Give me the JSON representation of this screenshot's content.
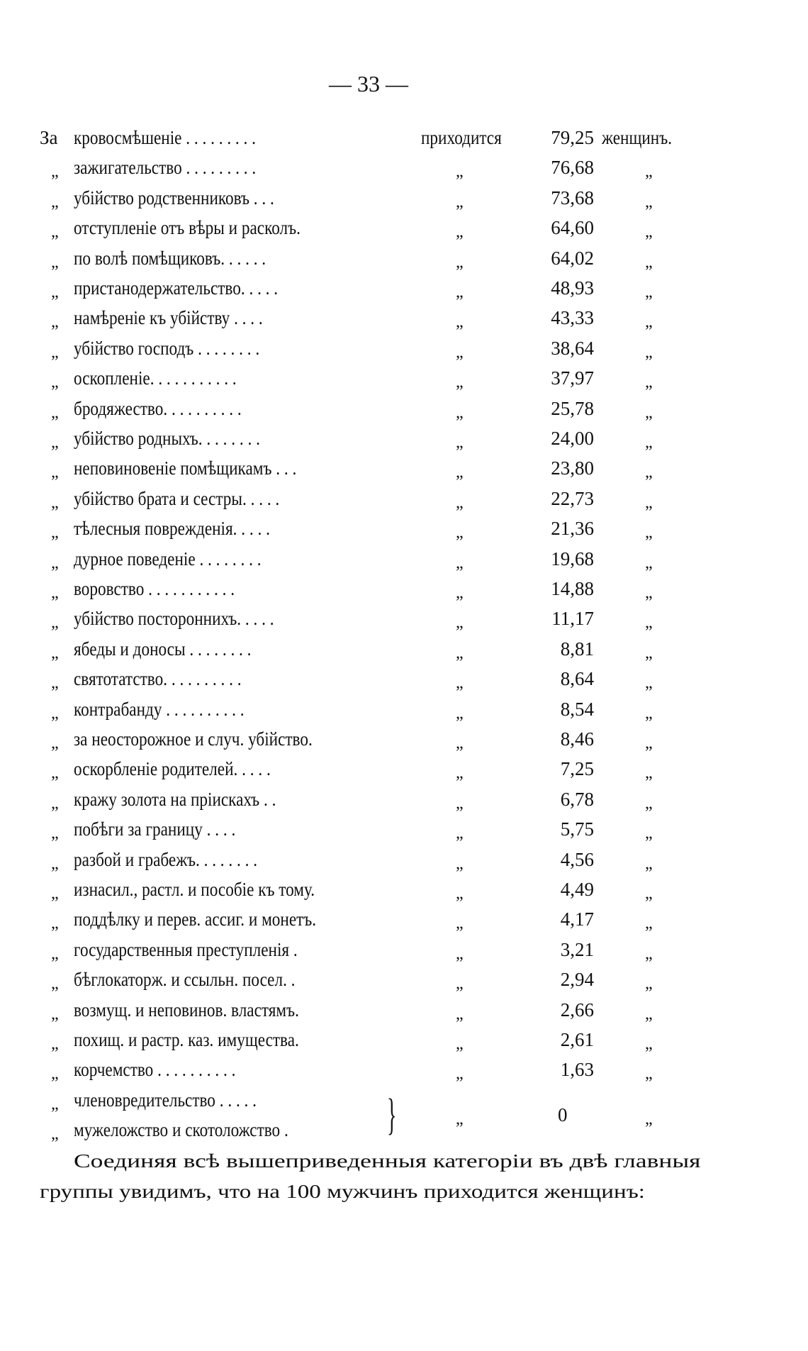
{
  "page_number": "— 33 —",
  "table": {
    "first_prefix": "За",
    "ditto": "„",
    "verb": "приходится",
    "unit": "женщинъ.",
    "rows": [
      {
        "label": "кровосмѣшеніе . . . . . . . . .",
        "value": "79,25"
      },
      {
        "label": "зажигательство . . . . . . . . .",
        "value": "76,68"
      },
      {
        "label": "убійство родственниковъ  . . .",
        "value": "73,68"
      },
      {
        "label": "отступленіе отъ вѣры и расколъ.",
        "value": "64,60"
      },
      {
        "label": "по волѣ помѣщиковъ.  . . . . .",
        "value": "64,02"
      },
      {
        "label": "пристанодержательство. . . . .",
        "value": "48,93"
      },
      {
        "label": "намѣреніе къ убійству  . . . .",
        "value": "43,33"
      },
      {
        "label": "убійство господъ . . . . . . . .",
        "value": "38,64"
      },
      {
        "label": "оскопленіе. . . . . . . . . . .",
        "value": "37,97"
      },
      {
        "label": "бродяжество. . . . . . . . . .",
        "value": "25,78"
      },
      {
        "label": "убійство родныхъ. . . . . . . .",
        "value": "24,00"
      },
      {
        "label": "неповиновеніе помѣщикамъ . . .",
        "value": "23,80"
      },
      {
        "label": "убійство брата и сестры. . . . .",
        "value": "22,73"
      },
      {
        "label": "тѣлесныя поврежденія. . . . .",
        "value": "21,36"
      },
      {
        "label": "дурное поведеніе . . . . . . . .",
        "value": "19,68"
      },
      {
        "label": "воровство . . . . . . . . . . .",
        "value": "14,88"
      },
      {
        "label": "убійство постороннихъ. . . . .",
        "value": "11,17"
      },
      {
        "label": "ябеды и доносы . . . . . . . .",
        "value": "8,81"
      },
      {
        "label": "святотатство. . . . . . . . . .",
        "value": "8,64"
      },
      {
        "label": "контрабанду . . . . . . . . . .",
        "value": "8,54"
      },
      {
        "label": "за неосторожное и случ. убійство.",
        "value": "8,46"
      },
      {
        "label": "оскорбленіе родителей. . . . .",
        "value": "7,25"
      },
      {
        "label": "кражу золота на пріискахъ  . .",
        "value": "6,78"
      },
      {
        "label": "побѣги за границу     . . . .",
        "value": "5,75"
      },
      {
        "label": "разбой и грабежъ. . . . . . . .",
        "value": "4,56"
      },
      {
        "label": "изнасил., растл. и пособіе къ тому.",
        "value": "4,49"
      },
      {
        "label": "поддѣлку и перев. ассиг. и монетъ.",
        "value": "4,17"
      },
      {
        "label": "государственныя преступленія  .",
        "value": "3,21"
      },
      {
        "label": "бѣглокаторж. и ссыльн. посел.  .",
        "value": "2,94"
      },
      {
        "label": "возмущ. и неповинов. властямъ.",
        "value": "2,66"
      },
      {
        "label": "похищ. и растр. каз. имущества.",
        "value": "2,61"
      },
      {
        "label": "корчемство  . . . . . . . . . .",
        "value": "1,63"
      }
    ],
    "grouped": {
      "labels": [
        "членовредительство . . . . .",
        "мужеложство и скотоложство ."
      ],
      "brace": "}",
      "value": "0"
    }
  },
  "paragraph": {
    "line1": "Соединяя всѣ вышеприведенныя категоріи въ двѣ главныя",
    "line2": "группы увидимъ, что на 100 мужчинъ приходится женщинъ:"
  }
}
